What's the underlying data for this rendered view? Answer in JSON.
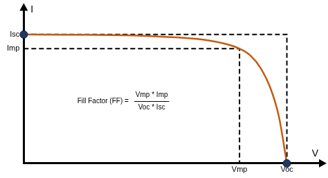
{
  "chart_data": {
    "type": "line",
    "x": [
      0,
      0.2,
      0.4,
      0.5,
      0.6,
      0.7,
      0.76,
      0.82,
      0.86,
      0.9,
      0.94,
      0.97,
      1.0
    ],
    "values": [
      1,
      0.998,
      0.993,
      0.985,
      0.975,
      0.955,
      0.93,
      0.89,
      0.84,
      0.74,
      0.57,
      0.36,
      0
    ],
    "color": "#c55a11",
    "xlim": [
      0,
      1.13
    ],
    "ylim": [
      0,
      1.2
    ],
    "xticks": [
      {
        "value": 0.82,
        "label": "Vmp"
      },
      {
        "value": 1,
        "label": "Voc"
      }
    ],
    "yticks": [
      {
        "value": 1,
        "label": "Isc"
      },
      {
        "value": 0.89,
        "label": "Imp"
      }
    ],
    "x_label": "V",
    "y_label": "I",
    "grid": false,
    "guides": {
      "line_style": "dashed",
      "color": "#000000",
      "points": [
        {
          "x": 0.82,
          "y": 0.89
        },
        {
          "x": 1,
          "y": 1
        }
      ]
    },
    "markers": {
      "marker": "circle",
      "color": "#1f3864",
      "points": [
        {
          "x": 0,
          "y": 1
        },
        {
          "x": 1,
          "y": 0
        }
      ]
    },
    "annotations": [
      {
        "text": "Fill Factor (FF) =",
        "numerator": "Vmp * Imp",
        "denominator": "Voc * Isc"
      }
    ]
  }
}
